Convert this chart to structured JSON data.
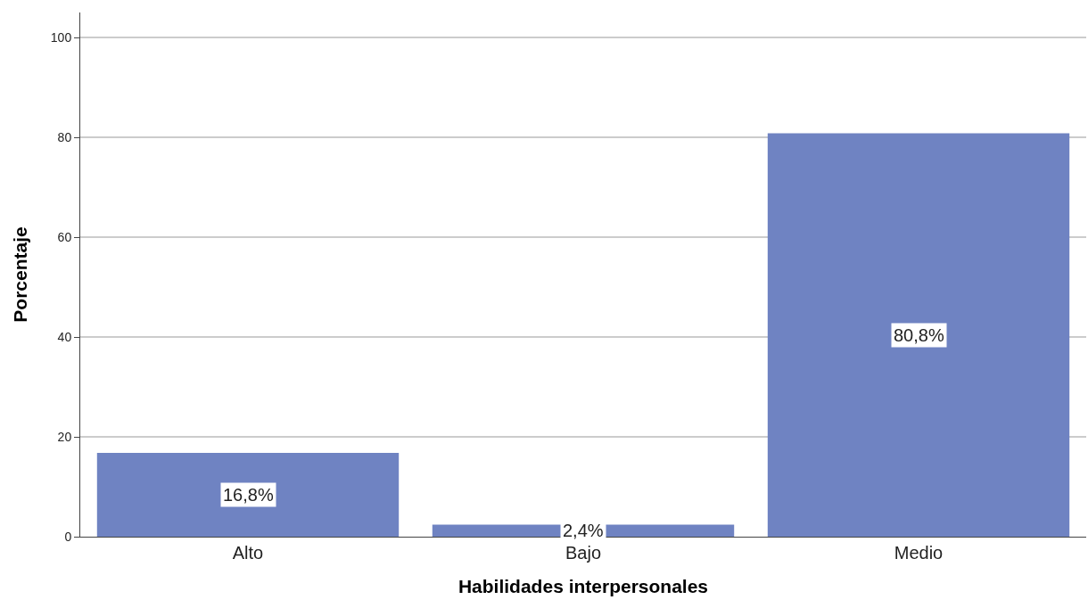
{
  "chart_data": {
    "type": "bar",
    "xlabel": "Habilidades interpersonales",
    "ylabel": "Porcentaje",
    "categories": [
      "Alto",
      "Bajo",
      "Medio"
    ],
    "values": [
      16.8,
      2.4,
      80.8
    ],
    "value_labels": [
      "16,8%",
      "2,4%",
      "80,8%"
    ],
    "color": "#6f83c2",
    "ylim": [
      0,
      105
    ],
    "yticks": [
      0,
      20,
      40,
      60,
      80,
      100
    ],
    "grid": "y"
  }
}
